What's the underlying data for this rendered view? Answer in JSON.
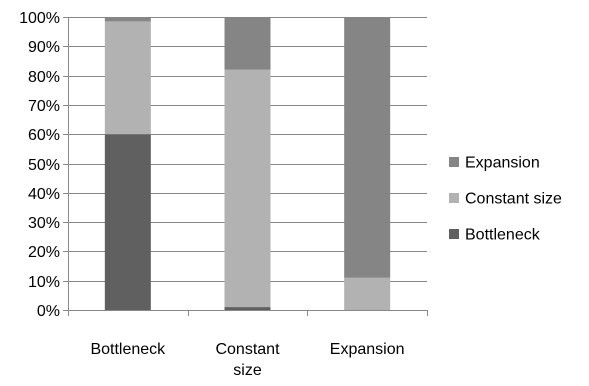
{
  "chart_data": {
    "type": "bar",
    "stacked": true,
    "percent_stacked": true,
    "title": "",
    "xlabel": "",
    "ylabel": "",
    "ylim": [
      0,
      100
    ],
    "y_ticks": [
      "0%",
      "10%",
      "20%",
      "30%",
      "40%",
      "50%",
      "60%",
      "70%",
      "80%",
      "90%",
      "100%"
    ],
    "grid": true,
    "legend_position": "right",
    "categories": [
      {
        "lines": [
          "Bottleneck"
        ]
      },
      {
        "lines": [
          "Constant",
          "size"
        ]
      },
      {
        "lines": [
          "Expansion"
        ]
      }
    ],
    "series": [
      {
        "name": "Bottleneck",
        "color": "#606060",
        "values": [
          60,
          1,
          0
        ]
      },
      {
        "name": "Constant size",
        "color": "#b2b2b2",
        "values": [
          38.5,
          81,
          11
        ]
      },
      {
        "name": "Expansion",
        "color": "#858585",
        "values": [
          1.5,
          18,
          89
        ]
      }
    ],
    "legend_order": [
      "Expansion",
      "Constant size",
      "Bottleneck"
    ]
  }
}
